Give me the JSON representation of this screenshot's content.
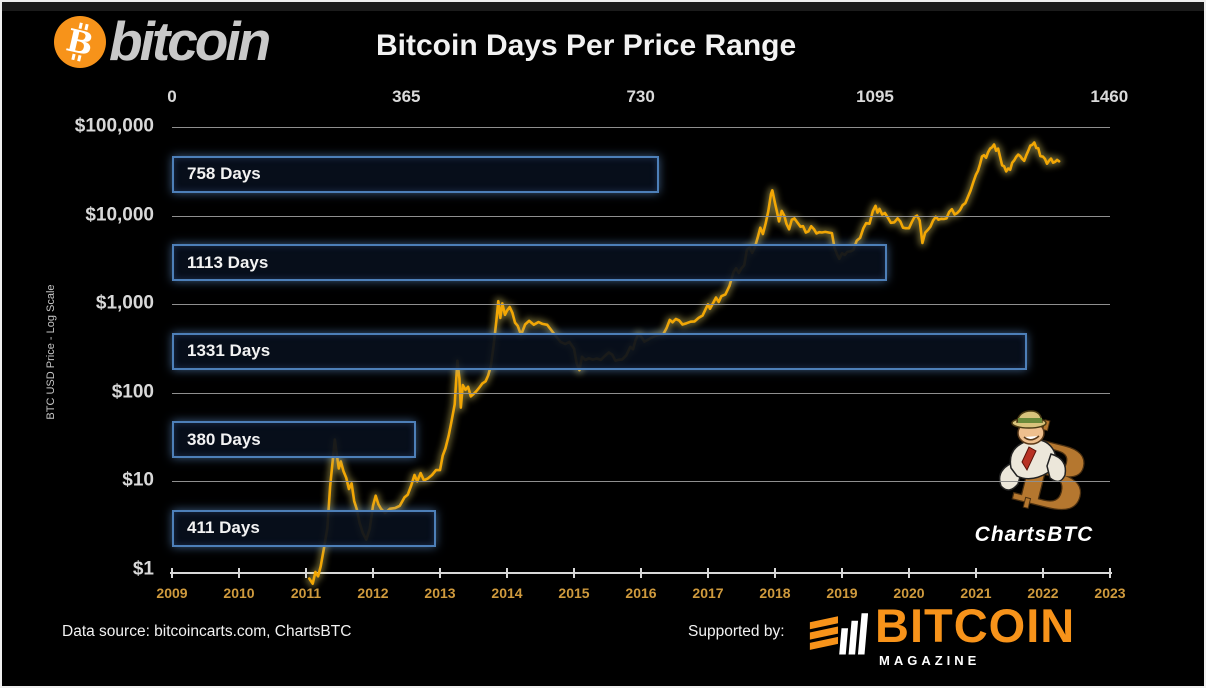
{
  "header": {
    "logo_text": "bitcoin",
    "title": "Bitcoin Days Per Price Range"
  },
  "footer": {
    "data_source": "Data source: bitcoincarts.com, ChartsBTC",
    "supported_by": "Supported by:",
    "magazine_name": "BITCOIN",
    "magazine_sub": "MAGAZINE"
  },
  "mascot": {
    "label": "ChartsBTC"
  },
  "colors": {
    "bitcoin_orange": "#f7931a",
    "line_gold": "#f2a705",
    "line_glow": "#e8d76a",
    "bar_border_blue": "#4d7fb8",
    "year_label_gold": "#cf9a3d"
  },
  "chart_data": {
    "type": "line",
    "title": "Bitcoin Days Per Price Range",
    "ylabel": "BTC USD Price - Log Scale",
    "y_axis": {
      "scale": "log",
      "ticks": [
        {
          "label": "$100,000",
          "value": 100000
        },
        {
          "label": "$10,000",
          "value": 10000
        },
        {
          "label": "$1,000",
          "value": 1000
        },
        {
          "label": "$100",
          "value": 100
        },
        {
          "label": "$10",
          "value": 10
        },
        {
          "label": "$1",
          "value": 1
        }
      ]
    },
    "top_axis": {
      "unit": "days",
      "ticks": [
        0,
        365,
        730,
        1095,
        1460
      ],
      "max": 1460
    },
    "x_axis": {
      "years": [
        2009,
        2010,
        2011,
        2012,
        2013,
        2014,
        2015,
        2016,
        2017,
        2018,
        2019,
        2020,
        2021,
        2022,
        2023
      ]
    },
    "bars": [
      {
        "label": "758 Days",
        "days": 758,
        "range_low": 10000,
        "range_high": 100000
      },
      {
        "label": "1113 Days",
        "days": 1113,
        "range_low": 1000,
        "range_high": 10000
      },
      {
        "label": "1331 Days",
        "days": 1331,
        "range_low": 100,
        "range_high": 1000
      },
      {
        "label": "380 Days",
        "days": 380,
        "range_low": 10,
        "range_high": 100
      },
      {
        "label": "411 Days",
        "days": 411,
        "range_low": 1,
        "range_high": 10
      }
    ],
    "price_line": {
      "name": "BTC USD price",
      "points": [
        [
          2011.05,
          0.8
        ],
        [
          2011.1,
          0.7
        ],
        [
          2011.14,
          0.95
        ],
        [
          2011.18,
          0.85
        ],
        [
          2011.22,
          1.1
        ],
        [
          2011.27,
          1.8
        ],
        [
          2011.32,
          3
        ],
        [
          2011.36,
          8.7
        ],
        [
          2011.4,
          17.5
        ],
        [
          2011.43,
          29.6
        ],
        [
          2011.46,
          20
        ],
        [
          2011.49,
          14
        ],
        [
          2011.52,
          16.8
        ],
        [
          2011.56,
          13
        ],
        [
          2011.6,
          11
        ],
        [
          2011.64,
          8.2
        ],
        [
          2011.68,
          9.5
        ],
        [
          2011.72,
          6
        ],
        [
          2011.76,
          4.8
        ],
        [
          2011.8,
          3.4
        ],
        [
          2011.85,
          2.6
        ],
        [
          2011.9,
          2.2
        ],
        [
          2011.95,
          2.9
        ],
        [
          2012,
          5.3
        ],
        [
          2012.04,
          6.9
        ],
        [
          2012.08,
          5.5
        ],
        [
          2012.12,
          4.9
        ],
        [
          2012.18,
          4.4
        ],
        [
          2012.25,
          4.9
        ],
        [
          2012.33,
          5
        ],
        [
          2012.4,
          5.3
        ],
        [
          2012.47,
          6.6
        ],
        [
          2012.52,
          7.1
        ],
        [
          2012.57,
          9
        ],
        [
          2012.62,
          11.8
        ],
        [
          2012.66,
          10
        ],
        [
          2012.71,
          12.4
        ],
        [
          2012.76,
          10.3
        ],
        [
          2012.82,
          10.8
        ],
        [
          2012.88,
          11.8
        ],
        [
          2012.94,
          13.4
        ],
        [
          2013,
          13.4
        ],
        [
          2013.04,
          19.5
        ],
        [
          2013.08,
          23.5
        ],
        [
          2013.13,
          33
        ],
        [
          2013.17,
          47
        ],
        [
          2013.22,
          74
        ],
        [
          2013.26,
          230
        ],
        [
          2013.29,
          145
        ],
        [
          2013.31,
          68
        ],
        [
          2013.34,
          122
        ],
        [
          2013.38,
          108
        ],
        [
          2013.42,
          117
        ],
        [
          2013.46,
          91
        ],
        [
          2013.5,
          97
        ],
        [
          2013.54,
          104
        ],
        [
          2013.58,
          113
        ],
        [
          2013.63,
          127
        ],
        [
          2013.68,
          135
        ],
        [
          2013.72,
          157
        ],
        [
          2013.76,
          203
        ],
        [
          2013.8,
          340
        ],
        [
          2013.84,
          640
        ],
        [
          2013.87,
          1080
        ],
        [
          2013.9,
          700
        ],
        [
          2013.93,
          1020
        ],
        [
          2013.97,
          760
        ],
        [
          2014,
          845
        ],
        [
          2014.04,
          930
        ],
        [
          2014.08,
          800
        ],
        [
          2014.12,
          620
        ],
        [
          2014.16,
          570
        ],
        [
          2014.21,
          450
        ],
        [
          2014.27,
          590
        ],
        [
          2014.33,
          650
        ],
        [
          2014.4,
          585
        ],
        [
          2014.47,
          630
        ],
        [
          2014.53,
          600
        ],
        [
          2014.6,
          585
        ],
        [
          2014.67,
          500
        ],
        [
          2014.74,
          425
        ],
        [
          2014.8,
          375
        ],
        [
          2014.87,
          355
        ],
        [
          2014.93,
          375
        ],
        [
          2015,
          315
        ],
        [
          2015.04,
          215
        ],
        [
          2015.08,
          180
        ],
        [
          2015.12,
          255
        ],
        [
          2015.17,
          235
        ],
        [
          2015.22,
          245
        ],
        [
          2015.28,
          237
        ],
        [
          2015.34,
          244
        ],
        [
          2015.4,
          235
        ],
        [
          2015.46,
          260
        ],
        [
          2015.52,
          285
        ],
        [
          2015.57,
          270
        ],
        [
          2015.62,
          230
        ],
        [
          2015.67,
          236
        ],
        [
          2015.72,
          238
        ],
        [
          2015.78,
          265
        ],
        [
          2015.84,
          330
        ],
        [
          2015.88,
          310
        ],
        [
          2015.92,
          395
        ],
        [
          2015.96,
          455
        ],
        [
          2016,
          433
        ],
        [
          2016.05,
          378
        ],
        [
          2016.1,
          395
        ],
        [
          2016.15,
          418
        ],
        [
          2016.21,
          437
        ],
        [
          2016.27,
          450
        ],
        [
          2016.33,
          455
        ],
        [
          2016.38,
          535
        ],
        [
          2016.43,
          665
        ],
        [
          2016.47,
          625
        ],
        [
          2016.52,
          680
        ],
        [
          2016.57,
          655
        ],
        [
          2016.62,
          590
        ],
        [
          2016.68,
          610
        ],
        [
          2016.74,
          635
        ],
        [
          2016.8,
          640
        ],
        [
          2016.86,
          700
        ],
        [
          2016.92,
          745
        ],
        [
          2016.97,
          900
        ],
        [
          2017,
          995
        ],
        [
          2017.03,
          890
        ],
        [
          2017.07,
          1010
        ],
        [
          2017.12,
          1190
        ],
        [
          2017.16,
          1060
        ],
        [
          2017.2,
          1230
        ],
        [
          2017.26,
          1290
        ],
        [
          2017.32,
          1600
        ],
        [
          2017.38,
          2300
        ],
        [
          2017.42,
          2550
        ],
        [
          2017.46,
          2250
        ],
        [
          2017.5,
          2550
        ],
        [
          2017.54,
          2750
        ],
        [
          2017.58,
          4100
        ],
        [
          2017.62,
          4350
        ],
        [
          2017.66,
          3800
        ],
        [
          2017.7,
          4400
        ],
        [
          2017.74,
          5600
        ],
        [
          2017.78,
          7300
        ],
        [
          2017.82,
          6200
        ],
        [
          2017.86,
          8100
        ],
        [
          2017.9,
          11200
        ],
        [
          2017.94,
          17500
        ],
        [
          2017.96,
          19300
        ],
        [
          2018,
          13800
        ],
        [
          2018.03,
          11000
        ],
        [
          2018.06,
          8600
        ],
        [
          2018.1,
          11300
        ],
        [
          2018.14,
          9900
        ],
        [
          2018.17,
          8100
        ],
        [
          2018.21,
          7000
        ],
        [
          2018.25,
          9000
        ],
        [
          2018.29,
          9300
        ],
        [
          2018.33,
          8450
        ],
        [
          2018.38,
          7500
        ],
        [
          2018.42,
          7600
        ],
        [
          2018.46,
          6450
        ],
        [
          2018.5,
          6650
        ],
        [
          2018.54,
          7600
        ],
        [
          2018.58,
          7050
        ],
        [
          2018.62,
          6300
        ],
        [
          2018.66,
          6500
        ],
        [
          2018.7,
          6450
        ],
        [
          2018.75,
          6550
        ],
        [
          2018.8,
          6450
        ],
        [
          2018.85,
          6350
        ],
        [
          2018.89,
          4300
        ],
        [
          2018.93,
          3600
        ],
        [
          2018.96,
          3250
        ],
        [
          2019,
          3750
        ],
        [
          2019.04,
          3600
        ],
        [
          2019.08,
          3900
        ],
        [
          2019.13,
          3950
        ],
        [
          2019.17,
          4100
        ],
        [
          2019.22,
          5200
        ],
        [
          2019.27,
          5600
        ],
        [
          2019.32,
          7200
        ],
        [
          2019.36,
          8200
        ],
        [
          2019.41,
          8100
        ],
        [
          2019.46,
          11200
        ],
        [
          2019.5,
          12900
        ],
        [
          2019.53,
          10800
        ],
        [
          2019.56,
          11900
        ],
        [
          2019.6,
          10300
        ],
        [
          2019.64,
          10700
        ],
        [
          2019.68,
          9600
        ],
        [
          2019.73,
          8300
        ],
        [
          2019.78,
          8400
        ],
        [
          2019.83,
          9300
        ],
        [
          2019.87,
          8600
        ],
        [
          2019.91,
          7300
        ],
        [
          2019.95,
          7200
        ],
        [
          2020,
          7200
        ],
        [
          2020.04,
          8400
        ],
        [
          2020.08,
          9600
        ],
        [
          2020.12,
          10000
        ],
        [
          2020.16,
          8800
        ],
        [
          2020.2,
          4900
        ],
        [
          2020.24,
          6400
        ],
        [
          2020.28,
          6900
        ],
        [
          2020.32,
          7500
        ],
        [
          2020.36,
          8800
        ],
        [
          2020.4,
          9700
        ],
        [
          2020.44,
          9000
        ],
        [
          2020.48,
          9200
        ],
        [
          2020.52,
          9150
        ],
        [
          2020.56,
          9300
        ],
        [
          2020.6,
          11000
        ],
        [
          2020.64,
          11800
        ],
        [
          2020.68,
          10300
        ],
        [
          2020.72,
          10700
        ],
        [
          2020.76,
          11500
        ],
        [
          2020.8,
          13100
        ],
        [
          2020.84,
          13800
        ],
        [
          2020.88,
          16300
        ],
        [
          2020.92,
          19200
        ],
        [
          2020.96,
          23800
        ],
        [
          2021,
          29000
        ],
        [
          2021.03,
          32000
        ],
        [
          2021.06,
          38000
        ],
        [
          2021.09,
          46500
        ],
        [
          2021.12,
          48000
        ],
        [
          2021.15,
          45000
        ],
        [
          2021.18,
          52000
        ],
        [
          2021.21,
          57000
        ],
        [
          2021.24,
          59000
        ],
        [
          2021.27,
          63500
        ],
        [
          2021.3,
          54000
        ],
        [
          2021.33,
          57000
        ],
        [
          2021.36,
          46000
        ],
        [
          2021.39,
          37000
        ],
        [
          2021.42,
          36000
        ],
        [
          2021.45,
          31500
        ],
        [
          2021.48,
          34000
        ],
        [
          2021.51,
          33000
        ],
        [
          2021.54,
          39500
        ],
        [
          2021.57,
          42000
        ],
        [
          2021.6,
          46000
        ],
        [
          2021.63,
          48800
        ],
        [
          2021.66,
          47000
        ],
        [
          2021.69,
          43800
        ],
        [
          2021.72,
          41500
        ],
        [
          2021.75,
          48000
        ],
        [
          2021.78,
          54000
        ],
        [
          2021.81,
          61500
        ],
        [
          2021.84,
          63000
        ],
        [
          2021.87,
          66900
        ],
        [
          2021.9,
          58000
        ],
        [
          2021.93,
          57500
        ],
        [
          2021.96,
          47000
        ],
        [
          2022,
          46200
        ],
        [
          2022.03,
          43500
        ],
        [
          2022.06,
          38500
        ],
        [
          2022.09,
          41500
        ],
        [
          2022.12,
          44000
        ],
        [
          2022.15,
          39500
        ],
        [
          2022.18,
          40500
        ],
        [
          2022.21,
          42500
        ],
        [
          2022.24,
          41000
        ]
      ]
    }
  }
}
